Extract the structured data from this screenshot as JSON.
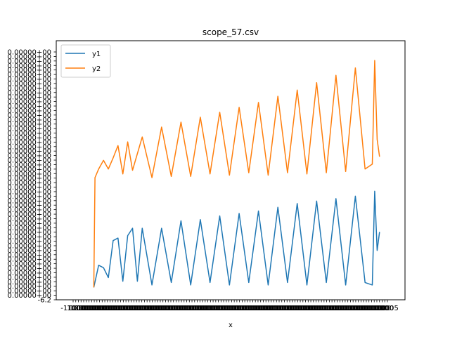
{
  "chart_data": {
    "type": "line",
    "title": "scope_57.csv",
    "xlabel": "x",
    "ylabel": "",
    "xlim": [
      -155,
      1285
    ],
    "ylim": [
      -0.1,
      2.0
    ],
    "grid": false,
    "legend_position": "top-left",
    "x_tick_labels_visible": [
      "-1",
      "5"
    ],
    "y_tick_label_tail": "+00",
    "y_tick_label_bottom": "-6.2",
    "series": [
      {
        "name": "y1",
        "color": "#1f77b4",
        "x": [
          0,
          20,
          40,
          60,
          80,
          100,
          120,
          140,
          160,
          180,
          200,
          240,
          280,
          320,
          360,
          400,
          440,
          480,
          520,
          560,
          600,
          640,
          680,
          720,
          760,
          800,
          840,
          880,
          920,
          960,
          1000,
          1040,
          1080,
          1120,
          1150,
          1160,
          1170,
          1180
        ],
        "values": [
          0.0,
          0.18,
          0.16,
          0.08,
          0.38,
          0.4,
          0.05,
          0.42,
          0.48,
          0.05,
          0.48,
          0.02,
          0.48,
          0.04,
          0.54,
          0.02,
          0.55,
          0.04,
          0.58,
          0.02,
          0.6,
          0.04,
          0.62,
          0.02,
          0.65,
          0.04,
          0.68,
          0.02,
          0.7,
          0.04,
          0.72,
          0.02,
          0.74,
          0.04,
          0.02,
          0.78,
          0.3,
          0.45
        ]
      },
      {
        "name": "y2",
        "color": "#ff7f0e",
        "x": [
          0,
          5,
          20,
          40,
          60,
          80,
          100,
          120,
          140,
          160,
          200,
          240,
          280,
          320,
          360,
          400,
          440,
          480,
          520,
          560,
          600,
          640,
          680,
          720,
          760,
          800,
          840,
          880,
          920,
          960,
          1000,
          1040,
          1080,
          1120,
          1150,
          1160,
          1170,
          1180
        ],
        "values": [
          0.0,
          0.89,
          0.96,
          1.03,
          0.96,
          1.05,
          1.15,
          0.92,
          1.18,
          0.95,
          1.22,
          0.89,
          1.3,
          0.9,
          1.34,
          0.9,
          1.38,
          0.92,
          1.42,
          0.91,
          1.46,
          0.93,
          1.5,
          0.91,
          1.55,
          0.93,
          1.6,
          0.92,
          1.66,
          0.93,
          1.72,
          0.94,
          1.78,
          0.96,
          1.0,
          1.84,
          1.2,
          1.06
        ]
      }
    ]
  }
}
